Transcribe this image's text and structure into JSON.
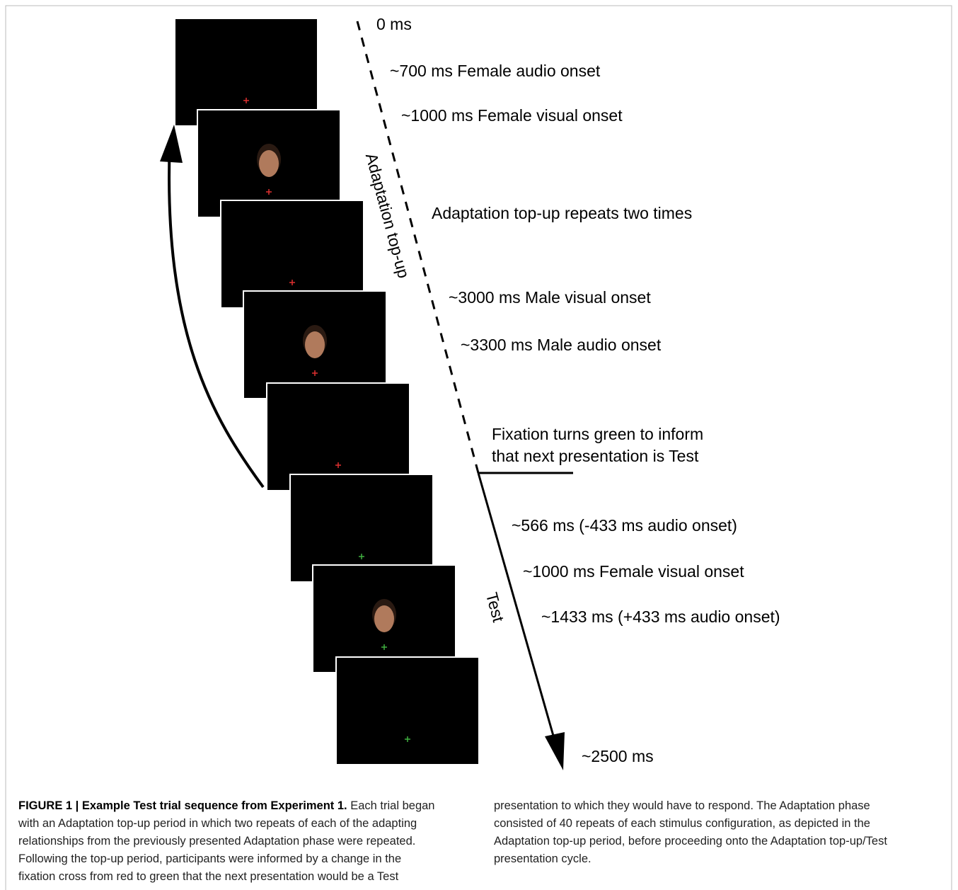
{
  "figure": {
    "labels": {
      "t0": "0 ms",
      "female_audio": "~700 ms Female audio onset",
      "female_visual": "~1000 ms Female visual onset",
      "repeats": "Adaptation top-up repeats two times",
      "male_visual": "~3000 ms Male visual onset",
      "male_audio": "~3300 ms Male audio onset",
      "fixation_line1": "Fixation turns green to inform",
      "fixation_line2": "that next presentation is Test",
      "test_audio_early": "~566 ms (-433 ms audio onset)",
      "test_visual": "~1000 ms Female visual onset",
      "test_audio_late": "~1433 ms (+433 ms audio onset)",
      "end": "~2500 ms",
      "phase_adaptation": "Adaptation top-up",
      "phase_test": "Test"
    }
  },
  "caption": {
    "title": "FIGURE 1 | Example Test trial sequence from Experiment 1.",
    "body": "Each trial began with an Adaptation top-up period in which two repeats of each of the adapting relationships from the previously presented Adaptation phase were repeated. Following the top-up period, participants were informed by a change in the fixation cross from red to green that the next presentation would be a Test presentation to which they would have to respond. The Adaptation phase consisted of 40 repeats of each stimulus configuration, as depicted in the Adaptation top-up period, before proceeding onto the Adaptation top-up/Test presentation cycle."
  }
}
